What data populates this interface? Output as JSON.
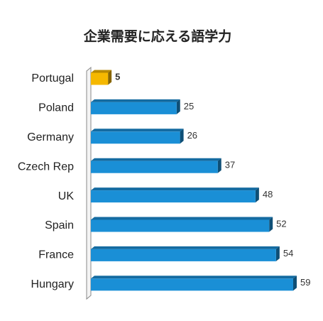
{
  "chart_data": {
    "type": "bar",
    "orientation": "horizontal",
    "title": "企業需要に応える語学力",
    "categories": [
      "Portugal",
      "Poland",
      "Germany",
      "Czech Rep",
      "UK",
      "Spain",
      "France",
      "Hungary"
    ],
    "values": [
      5,
      25,
      26,
      37,
      48,
      52,
      54,
      59
    ],
    "colors": [
      "#f5b800",
      "#1a8fd6",
      "#1a8fd6",
      "#1a8fd6",
      "#1a8fd6",
      "#1a8fd6",
      "#1a8fd6",
      "#1a8fd6"
    ]
  }
}
